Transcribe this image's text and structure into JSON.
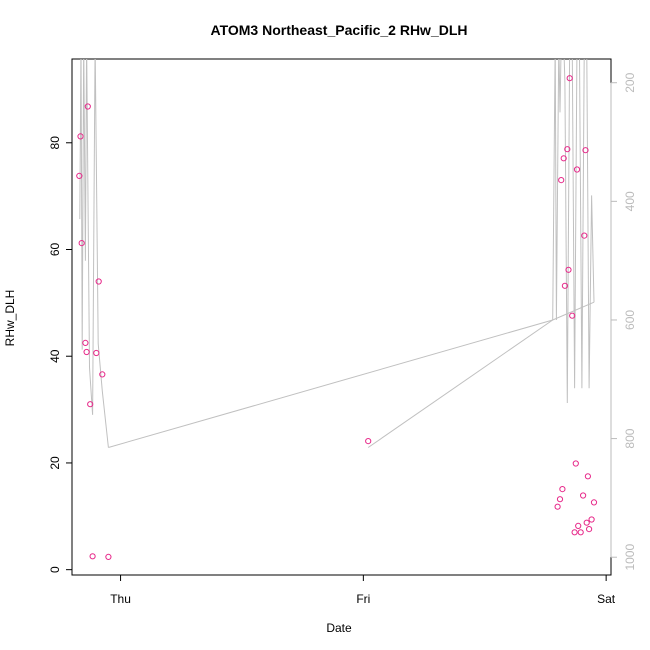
{
  "chart_data": {
    "type": "scatter",
    "title": "ATOM3 Northeast_Pacific_2 RHw_DLH",
    "xlabel": "Date",
    "ylabel": "RHw_DLH",
    "x_ticks": [
      "Thu",
      "Fri",
      "Sat"
    ],
    "y_ticks": [
      0,
      20,
      40,
      60,
      80
    ],
    "y2_ticks": [
      200,
      400,
      600,
      800,
      1000
    ],
    "x_range_days": [
      -0.2,
      2.0
    ],
    "xlim": [
      -0.2,
      2.02
    ],
    "ylim": [
      -1,
      95.7
    ],
    "y2lim": [
      1030,
      160
    ],
    "y2_reversed": true,
    "grid": false,
    "point_color": "#e7298a",
    "line_color": "#c0c0c0",
    "points": [
      {
        "x": -0.17,
        "y": 73.8
      },
      {
        "x": -0.165,
        "y": 81.2
      },
      {
        "x": -0.16,
        "y": 61.2
      },
      {
        "x": -0.145,
        "y": 42.5
      },
      {
        "x": -0.14,
        "y": 40.8
      },
      {
        "x": -0.135,
        "y": 86.8
      },
      {
        "x": -0.125,
        "y": 31.0
      },
      {
        "x": -0.115,
        "y": 2.5
      },
      {
        "x": -0.1,
        "y": 40.6
      },
      {
        "x": -0.09,
        "y": 54.0
      },
      {
        "x": -0.075,
        "y": 36.6
      },
      {
        "x": -0.05,
        "y": 2.4
      },
      {
        "x": 1.02,
        "y": 24.1
      },
      {
        "x": 1.8,
        "y": 11.8
      },
      {
        "x": 1.81,
        "y": 13.2
      },
      {
        "x": 1.815,
        "y": 73.0
      },
      {
        "x": 1.82,
        "y": 15.1
      },
      {
        "x": 1.825,
        "y": 77.1
      },
      {
        "x": 1.83,
        "y": 53.2
      },
      {
        "x": 1.84,
        "y": 78.8
      },
      {
        "x": 1.845,
        "y": 56.2
      },
      {
        "x": 1.85,
        "y": 92.1
      },
      {
        "x": 1.86,
        "y": 47.6
      },
      {
        "x": 1.87,
        "y": 7.0
      },
      {
        "x": 1.875,
        "y": 19.9
      },
      {
        "x": 1.88,
        "y": 75.0
      },
      {
        "x": 1.885,
        "y": 8.2
      },
      {
        "x": 1.895,
        "y": 7.0
      },
      {
        "x": 1.905,
        "y": 13.9
      },
      {
        "x": 1.91,
        "y": 62.6
      },
      {
        "x": 1.915,
        "y": 78.6
      },
      {
        "x": 1.92,
        "y": 8.8
      },
      {
        "x": 1.925,
        "y": 17.5
      },
      {
        "x": 1.93,
        "y": 7.6
      },
      {
        "x": 1.94,
        "y": 9.4
      },
      {
        "x": 1.95,
        "y": 12.6
      }
    ],
    "pressure_line": [
      {
        "x": -0.168,
        "p": 430
      },
      {
        "x": -0.163,
        "p": 130
      },
      {
        "x": -0.158,
        "p": 650
      },
      {
        "x": -0.152,
        "p": 130
      },
      {
        "x": -0.145,
        "p": 500
      },
      {
        "x": -0.14,
        "p": 130
      },
      {
        "x": -0.128,
        "p": 680
      },
      {
        "x": -0.115,
        "p": 760
      },
      {
        "x": -0.105,
        "p": 130
      },
      {
        "x": -0.092,
        "p": 640
      },
      {
        "x": -0.075,
        "p": 720
      },
      {
        "x": -0.05,
        "p": 815
      },
      {
        "x": 1.78,
        "p": 600
      },
      {
        "x": 1.79,
        "p": 130
      },
      {
        "x": 1.795,
        "p": 600
      },
      {
        "x": 1.805,
        "p": 130
      },
      {
        "x": 1.81,
        "p": 250
      },
      {
        "x": 1.815,
        "p": 130
      },
      {
        "x": 1.825,
        "p": 130
      },
      {
        "x": 1.83,
        "p": 200
      },
      {
        "x": 1.84,
        "p": 740
      },
      {
        "x": 1.85,
        "p": 130
      },
      {
        "x": 1.86,
        "p": 130
      },
      {
        "x": 1.87,
        "p": 715
      },
      {
        "x": 1.88,
        "p": 130
      },
      {
        "x": 1.89,
        "p": 130
      },
      {
        "x": 1.9,
        "p": 715
      },
      {
        "x": 1.91,
        "p": 130
      },
      {
        "x": 1.92,
        "p": 130
      },
      {
        "x": 1.93,
        "p": 715
      },
      {
        "x": 1.94,
        "p": 390
      },
      {
        "x": 1.95,
        "p": 570
      },
      {
        "x": 1.0,
        "p": 815
      },
      {
        "x": 1.02,
        "p": 815
      }
    ],
    "pressure_connector": [
      {
        "x": -0.05,
        "p": 815
      },
      {
        "x": 1.78,
        "p": 600
      },
      {
        "x": 1.95,
        "p": 570
      }
    ],
    "pressure_connector2": [
      {
        "x": 1.02,
        "p": 815
      },
      {
        "x": 1.78,
        "p": 600
      }
    ]
  }
}
